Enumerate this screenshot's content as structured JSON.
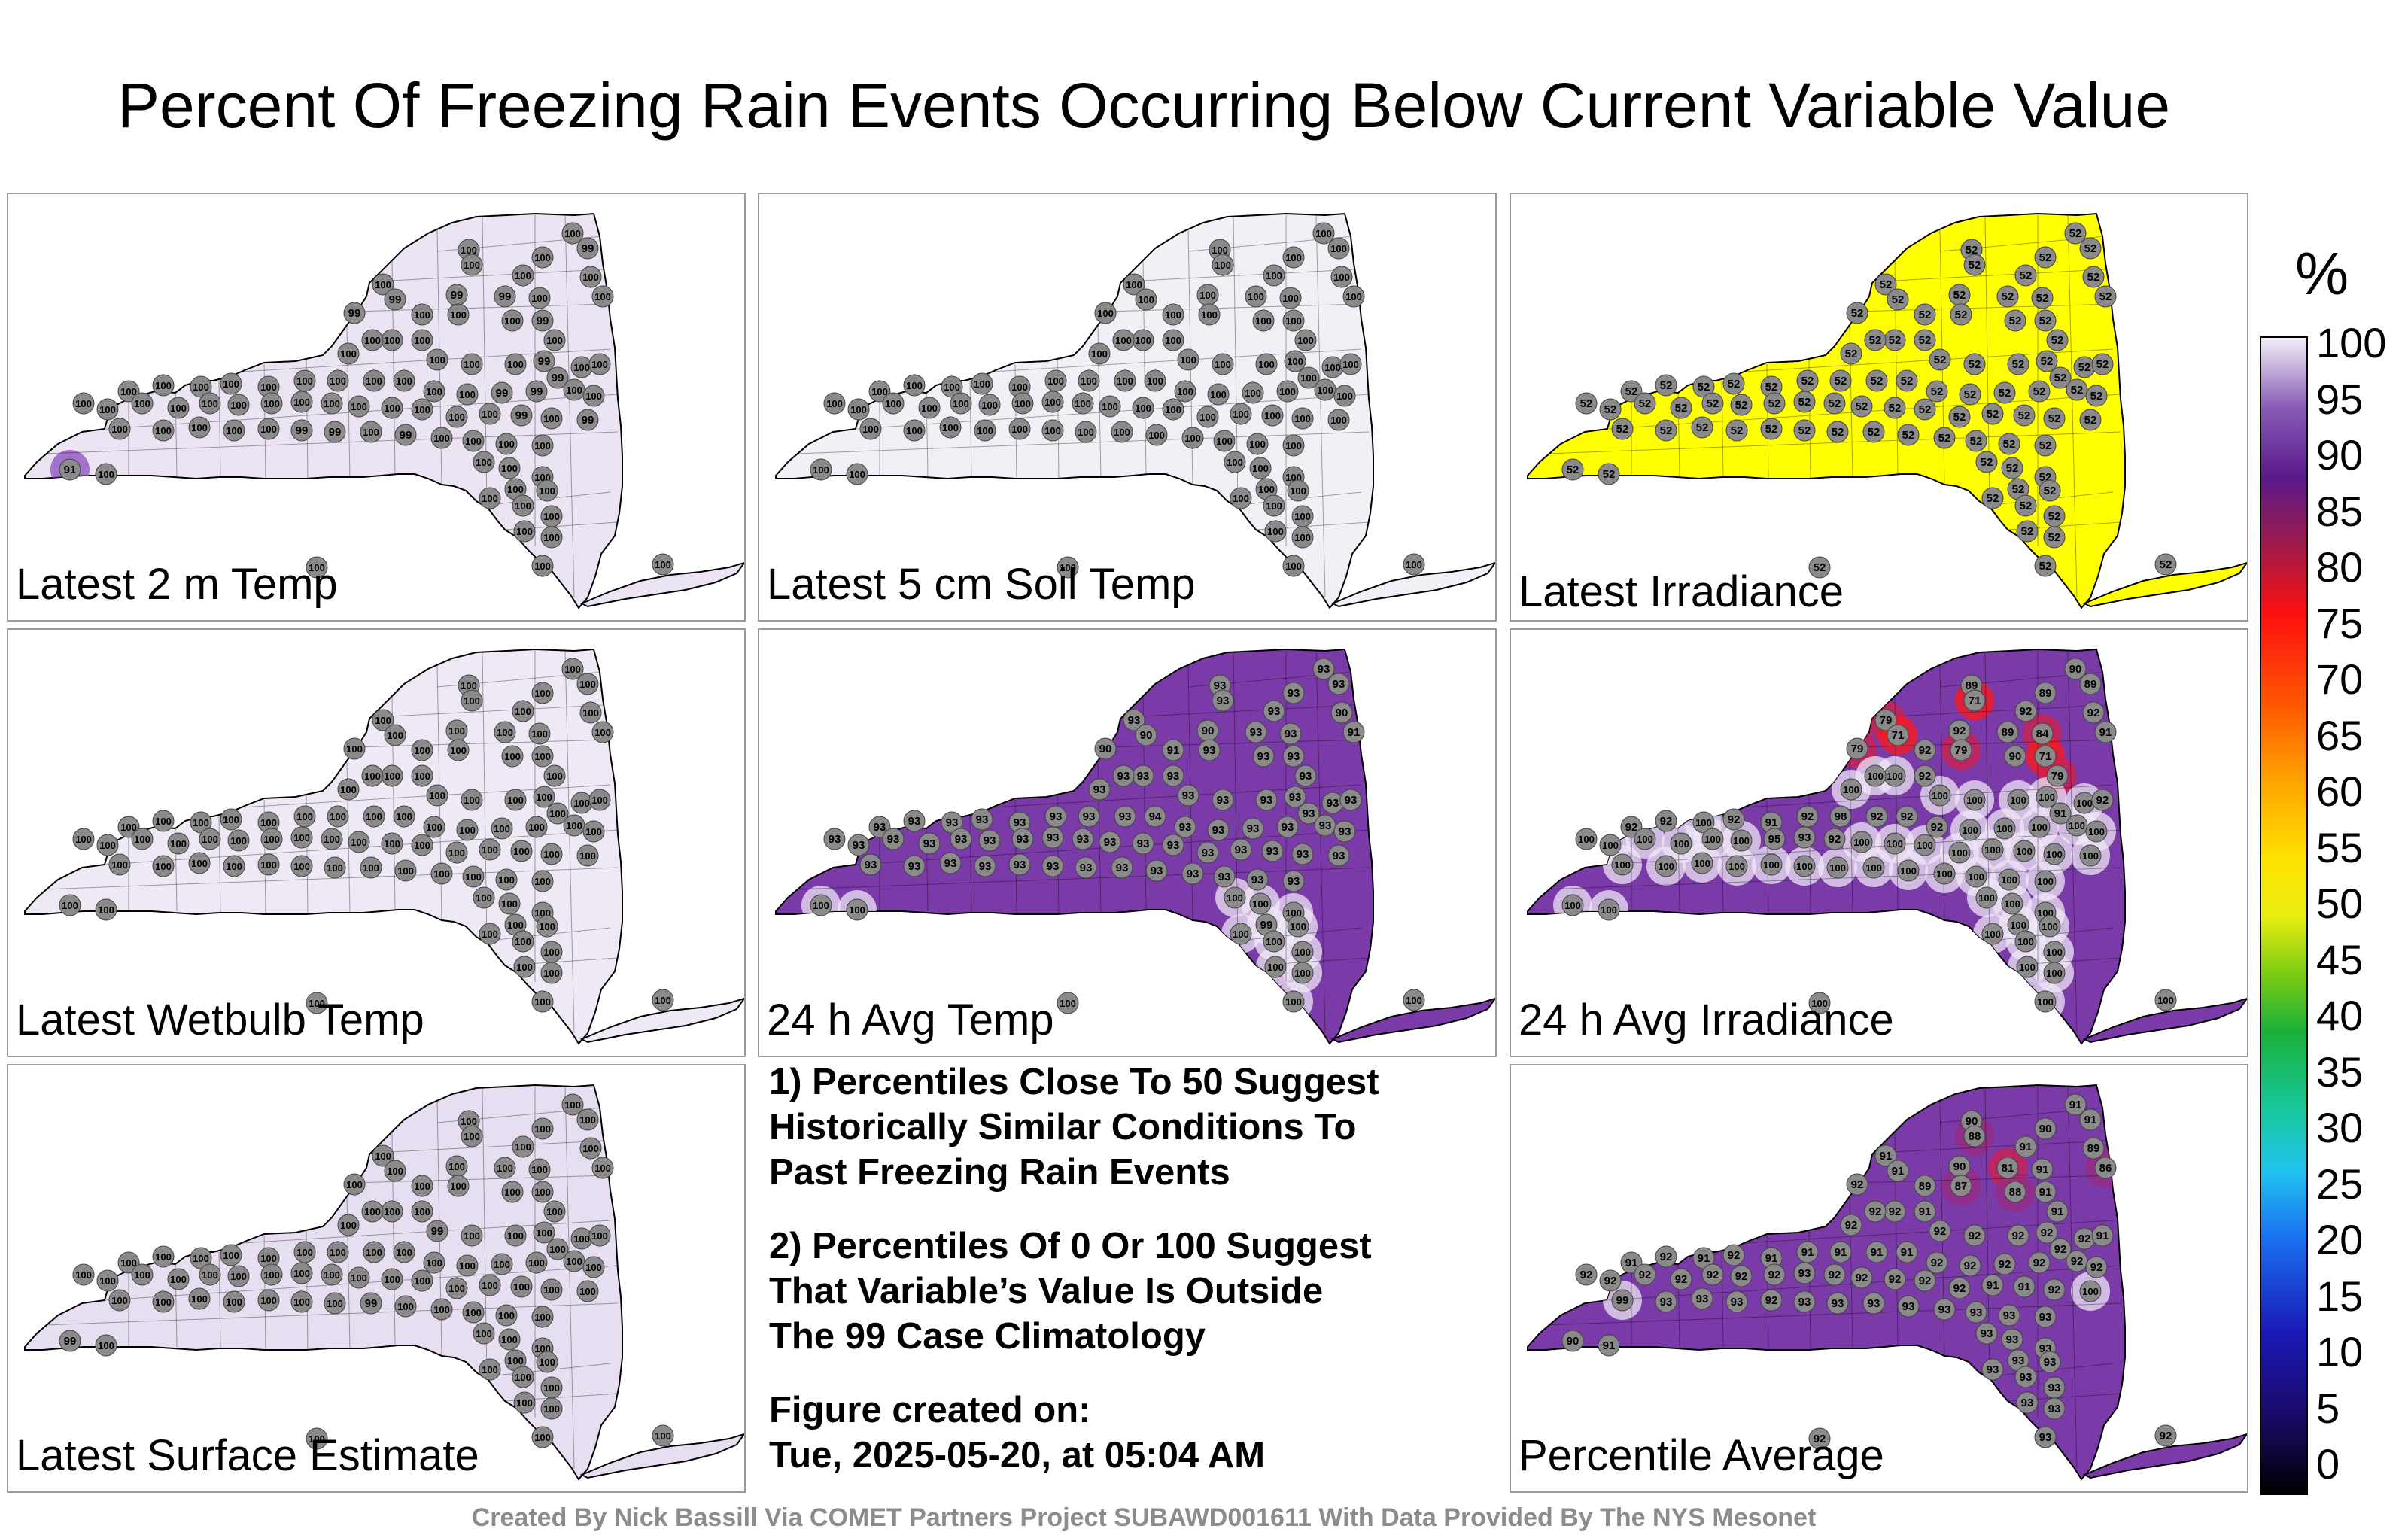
{
  "title": "Percent Of Freezing Rain Events Occurring Below Current Variable Value",
  "panels": [
    {
      "label": "Latest 2 m Temp",
      "fill": "#ece3f3",
      "values": [
        100,
        100,
        100,
        99,
        100,
        100,
        100,
        99,
        99,
        100,
        100,
        100,
        99,
        99,
        100,
        100,
        100,
        99,
        100,
        100,
        100,
        100,
        100,
        100,
        100,
        100,
        99,
        99,
        100,
        100,
        100,
        100,
        100,
        100,
        100,
        100,
        100,
        100,
        100,
        100,
        100,
        99,
        99,
        100,
        100,
        100,
        100,
        100,
        100,
        100,
        100,
        100,
        100,
        100,
        100,
        100,
        100,
        100,
        100,
        99,
        100,
        99,
        100,
        100,
        100,
        100,
        100,
        99,
        99,
        100,
        99,
        100,
        100,
        100,
        100,
        100,
        100,
        100,
        100,
        100,
        100,
        100,
        100,
        100,
        100,
        100,
        91,
        100,
        100,
        100
      ]
    },
    {
      "label": "Latest 5 cm Soil Temp",
      "fill": "#f3eff7",
      "values": [
        100,
        100,
        100,
        100,
        100,
        100,
        100,
        100,
        100,
        100,
        100,
        100,
        100,
        100,
        100,
        100,
        100,
        100,
        100,
        100,
        100,
        100,
        100,
        100,
        100,
        100,
        100,
        100,
        100,
        100,
        100,
        100,
        100,
        100,
        100,
        100,
        100,
        100,
        100,
        100,
        100,
        100,
        100,
        100,
        100,
        100,
        100,
        100,
        100,
        100,
        100,
        100,
        100,
        100,
        100,
        100,
        100,
        100,
        100,
        100,
        100,
        100,
        100,
        100,
        100,
        100,
        100,
        100,
        100,
        100,
        100,
        100,
        100,
        100,
        100,
        100,
        100,
        100,
        100,
        100,
        100,
        100,
        100,
        100,
        100,
        100,
        100,
        100,
        100,
        100
      ]
    },
    {
      "label": "Latest Irradiance",
      "fill": "#ffff00",
      "values": [
        52,
        52,
        52,
        52,
        52,
        52,
        52,
        52,
        52,
        52,
        52,
        52,
        52,
        52,
        52,
        52,
        52,
        52,
        52,
        52,
        52,
        52,
        52,
        52,
        52,
        52,
        52,
        52,
        52,
        52,
        52,
        52,
        52,
        52,
        52,
        52,
        52,
        52,
        52,
        52,
        52,
        52,
        52,
        52,
        52,
        52,
        52,
        52,
        52,
        52,
        52,
        52,
        52,
        52,
        52,
        52,
        52,
        52,
        52,
        52,
        52,
        52,
        52,
        52,
        52,
        52,
        52,
        52,
        52,
        52,
        52,
        52,
        52,
        52,
        52,
        52,
        52,
        52,
        52,
        52,
        52,
        52,
        52,
        52,
        52,
        52,
        52,
        52,
        52,
        52
      ]
    },
    {
      "label": "Latest Wetbulb Temp",
      "fill": "#efe9f5",
      "values": [
        100,
        100,
        100,
        100,
        100,
        100,
        100,
        100,
        100,
        100,
        100,
        100,
        100,
        100,
        100,
        100,
        100,
        100,
        100,
        100,
        100,
        100,
        100,
        100,
        100,
        100,
        100,
        100,
        100,
        100,
        100,
        100,
        100,
        100,
        100,
        100,
        100,
        100,
        100,
        100,
        100,
        100,
        100,
        100,
        100,
        100,
        100,
        100,
        100,
        100,
        100,
        100,
        100,
        100,
        100,
        100,
        100,
        100,
        100,
        100,
        100,
        100,
        100,
        100,
        100,
        100,
        100,
        100,
        100,
        100,
        100,
        100,
        100,
        100,
        100,
        100,
        100,
        100,
        100,
        100,
        100,
        100,
        100,
        100,
        100,
        100,
        100,
        100,
        100,
        100
      ]
    },
    {
      "label": "24 h Avg Temp",
      "fill": "#7a3aa8",
      "values": [
        93,
        93,
        93,
        93,
        93,
        93,
        90,
        90,
        93,
        93,
        91,
        93,
        90,
        90,
        91,
        93,
        93,
        93,
        93,
        93,
        93,
        93,
        93,
        93,
        93,
        93,
        93,
        93,
        93,
        93,
        93,
        93,
        93,
        93,
        93,
        93,
        93,
        93,
        94,
        93,
        93,
        93,
        93,
        93,
        93,
        93,
        93,
        93,
        93,
        93,
        93,
        93,
        93,
        93,
        93,
        93,
        93,
        93,
        93,
        93,
        93,
        93,
        93,
        93,
        93,
        93,
        93,
        93,
        93,
        93,
        93,
        93,
        93,
        93,
        93,
        100,
        100,
        100,
        99,
        100,
        100,
        100,
        100,
        100,
        100,
        100,
        100,
        100,
        100,
        100
      ]
    },
    {
      "label": "24 h Avg Irradiance",
      "fill": "#7a3aa8",
      "values": [
        89,
        71,
        90,
        89,
        89,
        92,
        92,
        92,
        89,
        84,
        91,
        79,
        71,
        79,
        92,
        79,
        90,
        71,
        79,
        92,
        100,
        100,
        100,
        100,
        100,
        100,
        100,
        91,
        100,
        92,
        92,
        92,
        100,
        92,
        91,
        92,
        98,
        92,
        92,
        92,
        100,
        100,
        100,
        100,
        100,
        100,
        100,
        100,
        100,
        100,
        100,
        95,
        93,
        92,
        100,
        100,
        100,
        100,
        100,
        100,
        100,
        100,
        100,
        100,
        100,
        100,
        100,
        100,
        100,
        100,
        100,
        100,
        100,
        100,
        100,
        100,
        100,
        100,
        100,
        100,
        100,
        100,
        100,
        100,
        100,
        100,
        100,
        100,
        100,
        100
      ]
    },
    {
      "label": "Latest Surface Estimate",
      "fill": "#e8def1",
      "values": [
        100,
        100,
        100,
        100,
        100,
        100,
        100,
        100,
        100,
        100,
        100,
        100,
        100,
        100,
        100,
        100,
        100,
        100,
        100,
        100,
        100,
        100,
        100,
        99,
        100,
        100,
        100,
        100,
        100,
        100,
        100,
        100,
        100,
        100,
        100,
        100,
        100,
        100,
        100,
        100,
        100,
        100,
        100,
        100,
        100,
        100,
        100,
        100,
        100,
        100,
        100,
        100,
        100,
        100,
        100,
        100,
        100,
        100,
        100,
        100,
        100,
        100,
        100,
        100,
        100,
        100,
        100,
        100,
        100,
        99,
        100,
        100,
        100,
        100,
        100,
        100,
        100,
        100,
        100,
        100,
        100,
        100,
        100,
        100,
        100,
        100,
        99,
        100,
        100,
        100
      ]
    },
    {
      "label": "Percentile Average",
      "fill": "#7a3aa8",
      "values": [
        90,
        88,
        91,
        91,
        90,
        91,
        89,
        90,
        81,
        91,
        86,
        91,
        91,
        92,
        89,
        87,
        88,
        91,
        91,
        91,
        92,
        92,
        92,
        92,
        92,
        92,
        92,
        92,
        92,
        91,
        91,
        92,
        91,
        92,
        91,
        91,
        91,
        91,
        91,
        92,
        92,
        92,
        92,
        92,
        92,
        92,
        92,
        92,
        92,
        92,
        92,
        92,
        93,
        92,
        92,
        92,
        92,
        92,
        91,
        91,
        92,
        100,
        99,
        93,
        93,
        93,
        92,
        93,
        93,
        93,
        93,
        93,
        93,
        93,
        93,
        93,
        93,
        93,
        93,
        93,
        93,
        93,
        93,
        93,
        93,
        93,
        90,
        91,
        92,
        92
      ]
    }
  ],
  "notes": {
    "line1": "1) Percentiles Close To 50 Suggest",
    "line2": "Historically Similar Conditions To",
    "line3": "Past Freezing Rain Events",
    "line4": "2) Percentiles Of 0 Or 100 Suggest",
    "line5": "That Variable’s Value Is Outside",
    "line6": "The 99 Case Climatology",
    "line7": "Figure created on:",
    "line8": "Tue, 2025-05-20, at 05:04 AM"
  },
  "colorbar": {
    "unit": "%",
    "ticks": [
      "100",
      "95",
      "90",
      "85",
      "80",
      "75",
      "70",
      "65",
      "60",
      "55",
      "50",
      "45",
      "40",
      "35",
      "30",
      "25",
      "20",
      "15",
      "10",
      "5",
      "0"
    ]
  },
  "footer": "Created By Nick Bassill Via COMET Partners Project SUBAWD001611 With Data Provided By The NYS Mesonet"
}
